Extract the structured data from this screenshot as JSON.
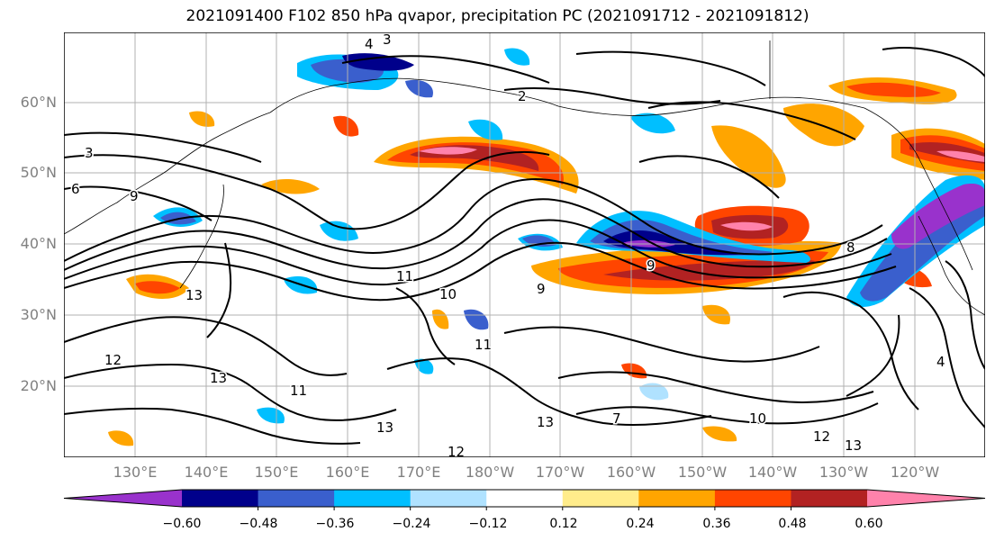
{
  "title": "2021091400 F102 850 hPa qvapor, precipitation PC (2021091712 - 2021091812)",
  "lat_labels": [
    "60°N",
    "50°N",
    "40°N",
    "30°N",
    "20°N"
  ],
  "lon_labels": [
    "130°E",
    "140°E",
    "150°E",
    "160°E",
    "170°E",
    "180°W",
    "170°W",
    "160°W",
    "150°W",
    "140°W",
    "130°W",
    "120°W"
  ],
  "colorbar": {
    "colors": [
      "#9932cc",
      "#00008b",
      "#3a5fcd",
      "#00bfff",
      "#b0e2ff",
      "#ffffff",
      "#ffec8b",
      "#ffa500",
      "#ff4500",
      "#b22222",
      "#ff82ab"
    ],
    "labels": [
      "−0.60",
      "−0.48",
      "−0.36",
      "−0.24",
      "−0.12",
      "0.12",
      "0.24",
      "0.36",
      "0.48",
      "0.60"
    ]
  },
  "contour_labels": [
    "4",
    "3",
    "2",
    "3",
    "6",
    "9",
    "11",
    "10",
    "9",
    "13",
    "12",
    "11",
    "13",
    "13",
    "12",
    "10",
    "13",
    "8",
    "9",
    "4",
    "12",
    "7",
    "11",
    "13"
  ]
}
